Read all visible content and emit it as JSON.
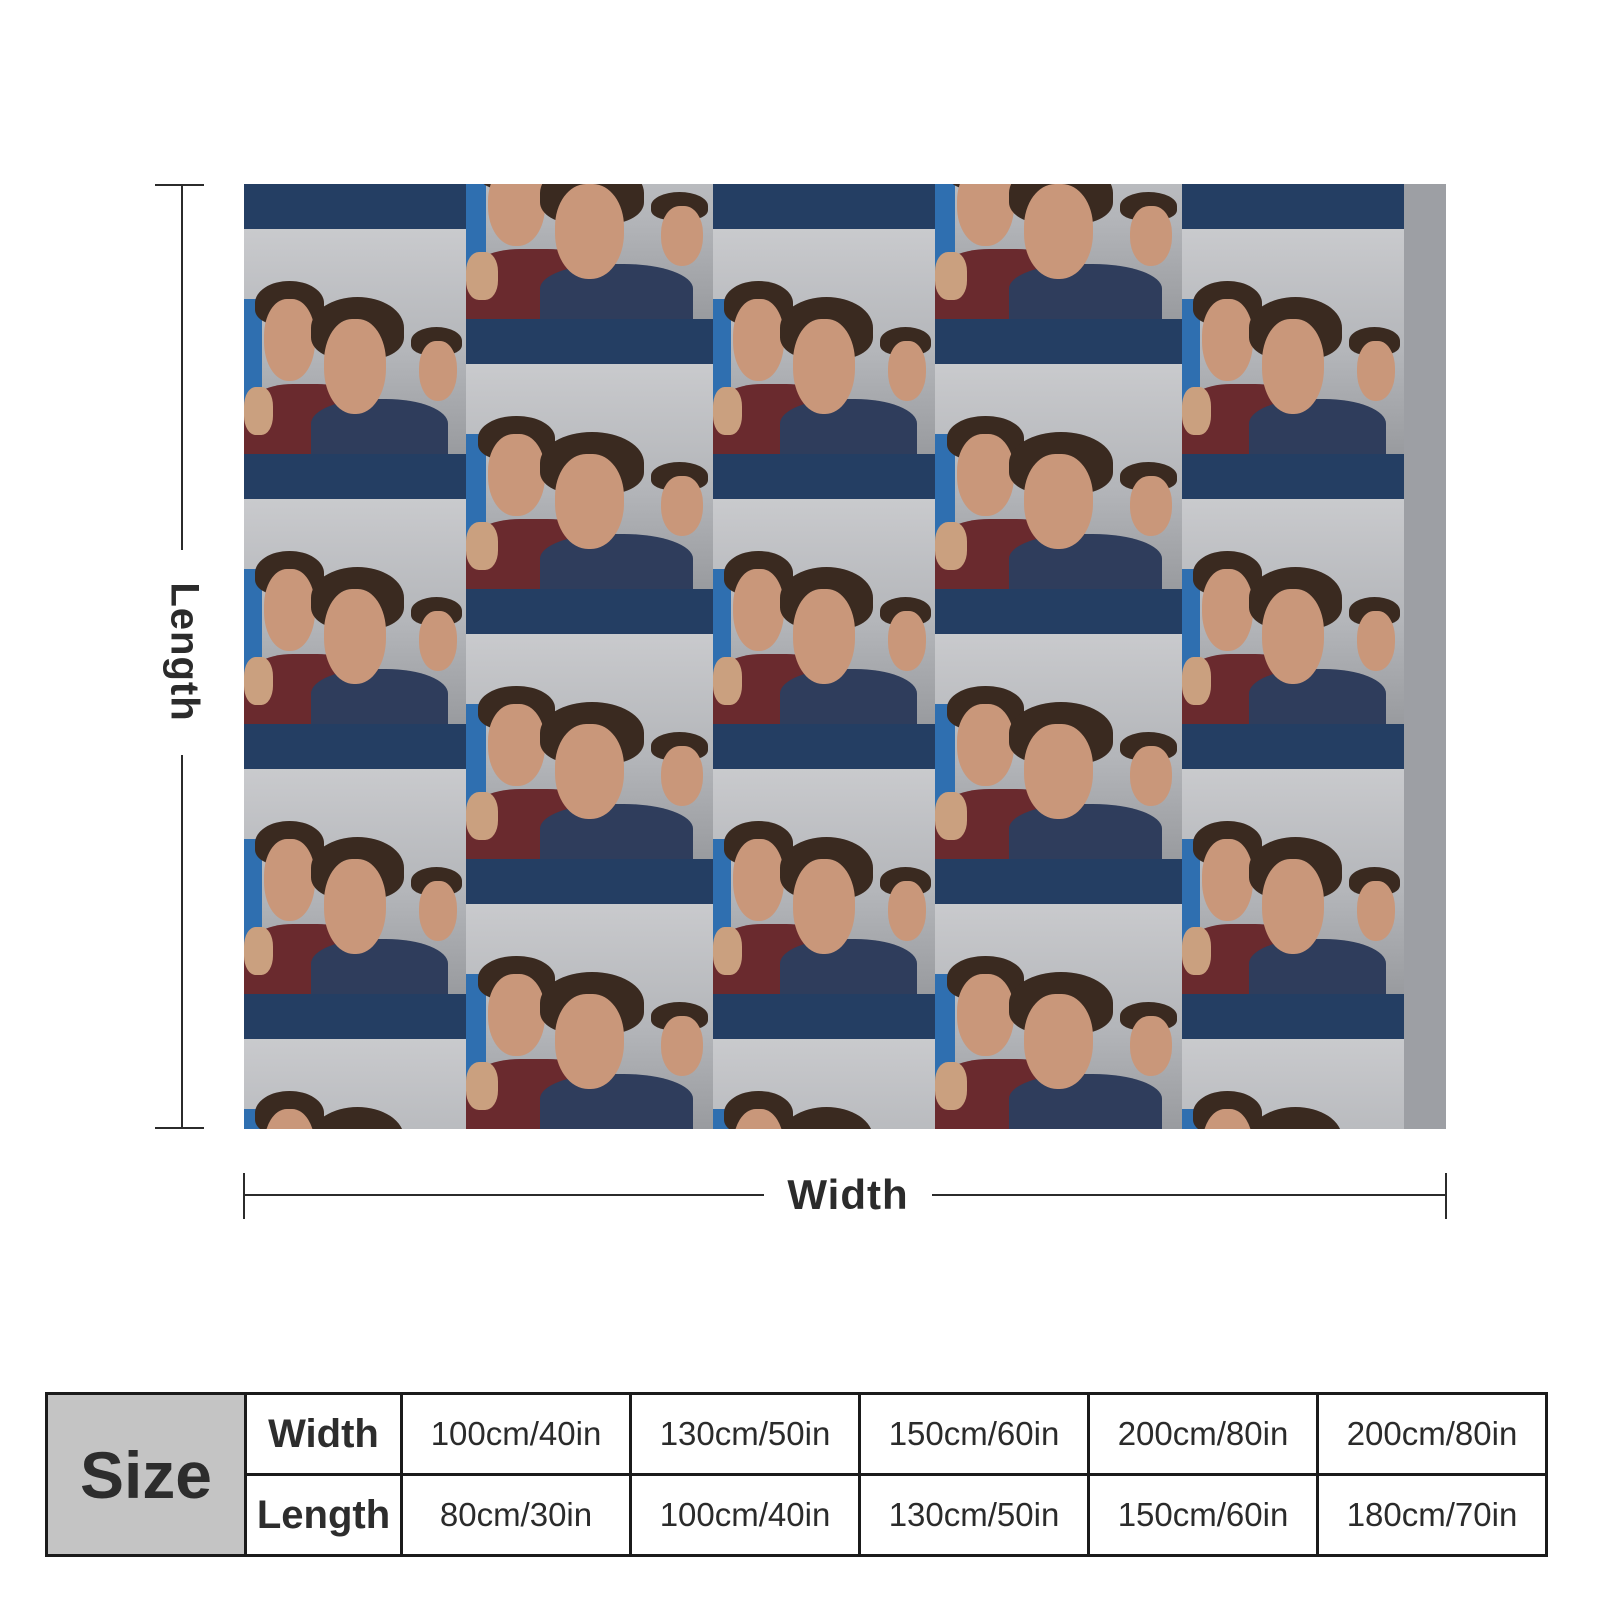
{
  "diagram": {
    "length_label": "Length",
    "width_label": "Width"
  },
  "product": {
    "print_description": "tiled selfie photo of three young men",
    "colors": {
      "band": "#243e63",
      "wall": "#b4b6ba",
      "shirt_red": "#6a2a2e",
      "shirt_blue": "#2f3d5c"
    }
  },
  "size_table": {
    "header": "Size",
    "rows": [
      {
        "label": "Width",
        "values": [
          "100cm/40in",
          "130cm/50in",
          "150cm/60in",
          "200cm/80in",
          "200cm/80in"
        ]
      },
      {
        "label": "Length",
        "values": [
          "80cm/30in",
          "100cm/40in",
          "130cm/50in",
          "150cm/60in",
          "180cm/70in"
        ]
      }
    ]
  }
}
